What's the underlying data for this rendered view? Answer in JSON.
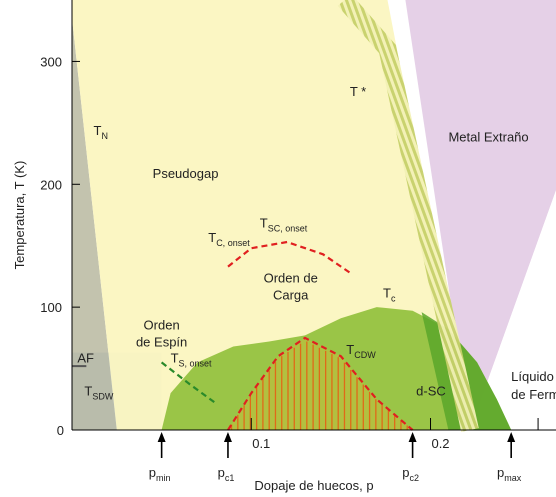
{
  "chart_data": {
    "type": "area",
    "xlabel": "Dopaje de huecos, p",
    "ylabel": "Temperatura,  T (K)",
    "xlim": [
      0,
      0.27
    ],
    "ylim": [
      0,
      350
    ],
    "x_ticks": [
      {
        "value": 0.1,
        "label": "0.1"
      },
      {
        "value": 0.2,
        "label": "0.2"
      }
    ],
    "y_ticks": [
      {
        "value": 100,
        "label": "100"
      },
      {
        "value": 200,
        "label": "200"
      },
      {
        "value": 300,
        "label": "300"
      }
    ],
    "y_origin_label": "0",
    "x_markers": [
      {
        "value": 0.05,
        "main": "p",
        "sub": "min"
      },
      {
        "value": 0.087,
        "main": "p",
        "sub": "c1"
      },
      {
        "value": 0.19,
        "main": "p",
        "sub": "c2"
      },
      {
        "value": 0.245,
        "main": "p",
        "sub": "max"
      }
    ],
    "regions": [
      {
        "key": "af",
        "label": "AF",
        "color": "#b6c9ea",
        "polygon": [
          [
            0,
            0
          ],
          [
            0,
            63
          ],
          [
            0.05,
            63
          ],
          [
            0.05,
            0
          ]
        ]
      },
      {
        "key": "tn",
        "label": "T",
        "label_sub": "N",
        "color": "#b8b8a0",
        "polygon": [
          [
            0,
            335
          ],
          [
            0.025,
            0
          ],
          [
            0,
            0
          ]
        ]
      },
      {
        "key": "pseudogap",
        "label": "Pseudogap",
        "color": "#fbf6c0",
        "polygon": [
          [
            0,
            350
          ],
          [
            0.176,
            350
          ],
          [
            0.222,
            0
          ],
          [
            0.025,
            0
          ],
          [
            0,
            335
          ]
        ]
      },
      {
        "key": "strange_metal",
        "label": "Metal Extraño",
        "color": "#e4cde6",
        "polygon": [
          [
            0.186,
            350
          ],
          [
            0.27,
            350
          ],
          [
            0.27,
            195
          ],
          [
            0.222,
            0
          ]
        ]
      },
      {
        "key": "fermi_liquid",
        "label": "Líquido",
        "label2": "de Fermi",
        "color": "#ffffff",
        "polygon": [
          [
            0.222,
            0
          ],
          [
            0.27,
            195
          ],
          [
            0.27,
            0
          ]
        ]
      },
      {
        "key": "dsc",
        "label": "d-SC",
        "label_sub": "",
        "color": "#8fc03a",
        "polygon": [
          [
            0.05,
            0
          ],
          [
            0.055,
            30
          ],
          [
            0.07,
            55
          ],
          [
            0.09,
            68
          ],
          [
            0.11,
            72
          ],
          [
            0.13,
            77
          ],
          [
            0.15,
            91
          ],
          [
            0.17,
            100
          ],
          [
            0.19,
            97
          ],
          [
            0.21,
            82
          ],
          [
            0.226,
            55
          ],
          [
            0.237,
            25
          ],
          [
            0.245,
            0
          ]
        ]
      }
    ],
    "series": [
      {
        "key": "tstar",
        "name": "T *",
        "style": "hatched-band",
        "color": "#d7d977",
        "x": [
          0.152,
          0.176,
          0.204,
          0.222
        ],
        "y": [
          350,
          310,
          120,
          0
        ]
      },
      {
        "key": "tc_onset",
        "name": "T",
        "name_sub": "C, onset",
        "style": "dashed",
        "color": "#e02020",
        "x": [
          0.087,
          0.1,
          0.12,
          0.14,
          0.155
        ],
        "y": [
          133,
          148,
          153,
          143,
          128
        ]
      },
      {
        "key": "tcdw",
        "name": "T",
        "name_sub": "CDW",
        "style": "dashed",
        "color": "#e02020",
        "x": [
          0.087,
          0.1,
          0.115,
          0.13,
          0.15,
          0.17,
          0.19
        ],
        "y": [
          0,
          30,
          60,
          75,
          60,
          25,
          0
        ]
      },
      {
        "key": "ts_onset",
        "name": "T",
        "name_sub": "S, onset",
        "style": "dashed",
        "color": "#2a8a2a",
        "x": [
          0.05,
          0.065,
          0.08
        ],
        "y": [
          55,
          38,
          22
        ]
      }
    ],
    "annotations": [
      {
        "key": "orden_carga",
        "lines": [
          "Orden de",
          "Carga"
        ],
        "color": "#e02020",
        "x": 0.122,
        "y": 120
      },
      {
        "key": "orden_espin",
        "lines": [
          "Orden",
          "de Espín"
        ],
        "color": "#2a8a2a",
        "x": 0.05,
        "y": 82
      },
      {
        "key": "tsc_onset",
        "main": "T",
        "sub": "SC, onset",
        "x": 0.118,
        "y": 165
      },
      {
        "key": "tc",
        "main": "T",
        "sub": "c",
        "x": 0.177,
        "y": 108
      },
      {
        "key": "tsdw",
        "main": "T",
        "sub": "SDW",
        "x": 0.015,
        "y": 28
      }
    ]
  }
}
